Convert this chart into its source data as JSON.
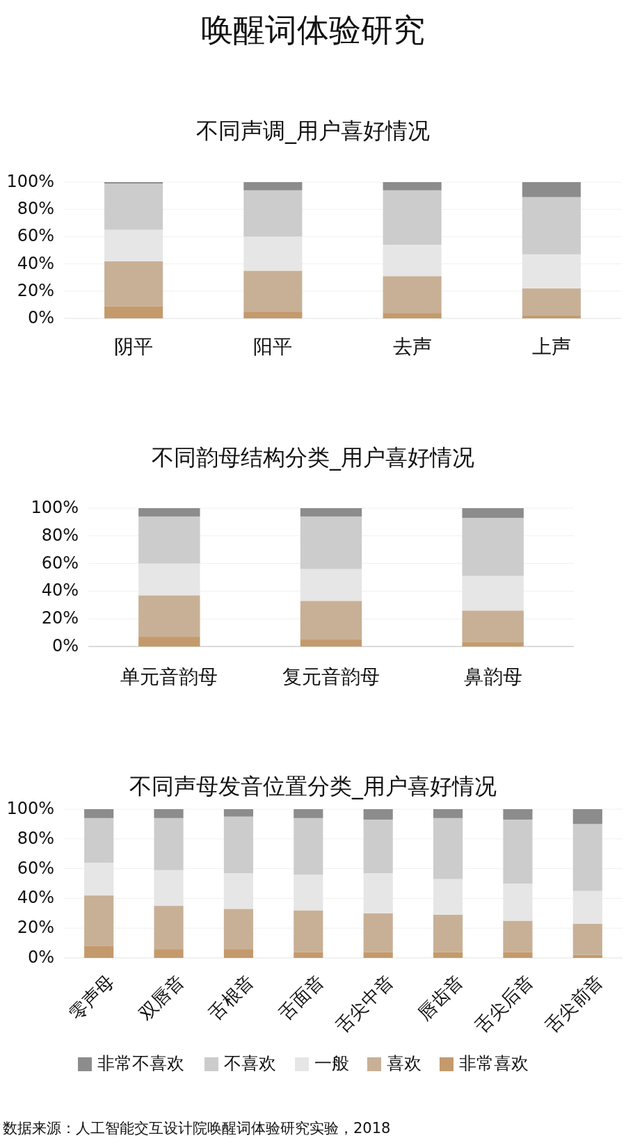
{
  "chart_data": [
    {
      "type": "bar",
      "stacked": true,
      "title": "唤醒词体验研究",
      "subtitle": "不同声调_用户喜好情况",
      "categories": [
        "阴平",
        "阳平",
        "去声",
        "上声"
      ],
      "ylim": [
        0,
        100
      ],
      "yticks": [
        {
          "value": 0,
          "label": "0%"
        },
        {
          "value": 20,
          "label": "20%"
        },
        {
          "value": 40,
          "label": "40%"
        },
        {
          "value": 60,
          "label": "60%"
        },
        {
          "value": 80,
          "label": "80%"
        },
        {
          "value": 100,
          "label": "100%"
        }
      ],
      "grid": "y",
      "series": [
        {
          "color": "#c49a6c",
          "values": [
            9,
            5,
            4,
            2
          ]
        },
        {
          "color": "#c8b096",
          "values": [
            33,
            30,
            27,
            20
          ]
        },
        {
          "color": "#e6e6e6",
          "values": [
            23,
            25,
            23,
            25
          ]
        },
        {
          "color": "#cccccc",
          "values": [
            34,
            34,
            40,
            42
          ]
        },
        {
          "color": "#8c8c8c",
          "values": [
            1,
            6,
            6,
            11
          ]
        }
      ]
    },
    {
      "type": "bar",
      "stacked": true,
      "title": "不同韵母结构分类_用户喜好情况",
      "categories": [
        "单元音韵母",
        "复元音韵母",
        "鼻韵母"
      ],
      "ylim": [
        0,
        100
      ],
      "yticks": [
        {
          "value": 0,
          "label": "0%"
        },
        {
          "value": 20,
          "label": "20%"
        },
        {
          "value": 40,
          "label": "40%"
        },
        {
          "value": 60,
          "label": "60%"
        },
        {
          "value": 80,
          "label": "80%"
        },
        {
          "value": 100,
          "label": "100%"
        }
      ],
      "grid": "y",
      "series": [
        {
          "color": "#c49a6c",
          "values": [
            7,
            5,
            3
          ]
        },
        {
          "color": "#c8b096",
          "values": [
            30,
            28,
            23
          ]
        },
        {
          "color": "#e6e6e6",
          "values": [
            23,
            23,
            25
          ]
        },
        {
          "color": "#cccccc",
          "values": [
            34,
            38,
            42
          ]
        },
        {
          "color": "#8c8c8c",
          "values": [
            6,
            6,
            7
          ]
        }
      ]
    },
    {
      "type": "bar",
      "stacked": true,
      "title": "不同声母发音位置分类_用户喜好情况",
      "categories": [
        "零声母",
        "双唇音",
        "舌根音",
        "舌面音",
        "舌尖中音",
        "唇齿音",
        "舌尖后音",
        "舌尖前音"
      ],
      "ylim": [
        0,
        100
      ],
      "yticks": [
        {
          "value": 0,
          "label": "0%"
        },
        {
          "value": 20,
          "label": "20%"
        },
        {
          "value": 40,
          "label": "40%"
        },
        {
          "value": 60,
          "label": "60%"
        },
        {
          "value": 80,
          "label": "80%"
        },
        {
          "value": 100,
          "label": "100%"
        }
      ],
      "grid": "y",
      "legend": "bottom",
      "annotations": [
        "数据来源：人工智能交互设计院唤醒词体验研究实验，2018"
      ],
      "series": [
        {
          "name": "非常喜欢",
          "color": "#c49a6c",
          "values": [
            8,
            6,
            6,
            4,
            4,
            4,
            4,
            2
          ]
        },
        {
          "name": "喜欢",
          "color": "#c8b096",
          "values": [
            34,
            29,
            27,
            28,
            26,
            25,
            21,
            21
          ]
        },
        {
          "name": "一般",
          "color": "#e6e6e6",
          "values": [
            22,
            24,
            24,
            24,
            27,
            24,
            25,
            22
          ]
        },
        {
          "name": "不喜欢",
          "color": "#cccccc",
          "values": [
            30,
            35,
            38,
            38,
            36,
            41,
            43,
            45
          ]
        },
        {
          "name": "非常不喜欢",
          "color": "#8c8c8c",
          "values": [
            6,
            6,
            5,
            6,
            7,
            6,
            7,
            10
          ]
        }
      ]
    }
  ]
}
